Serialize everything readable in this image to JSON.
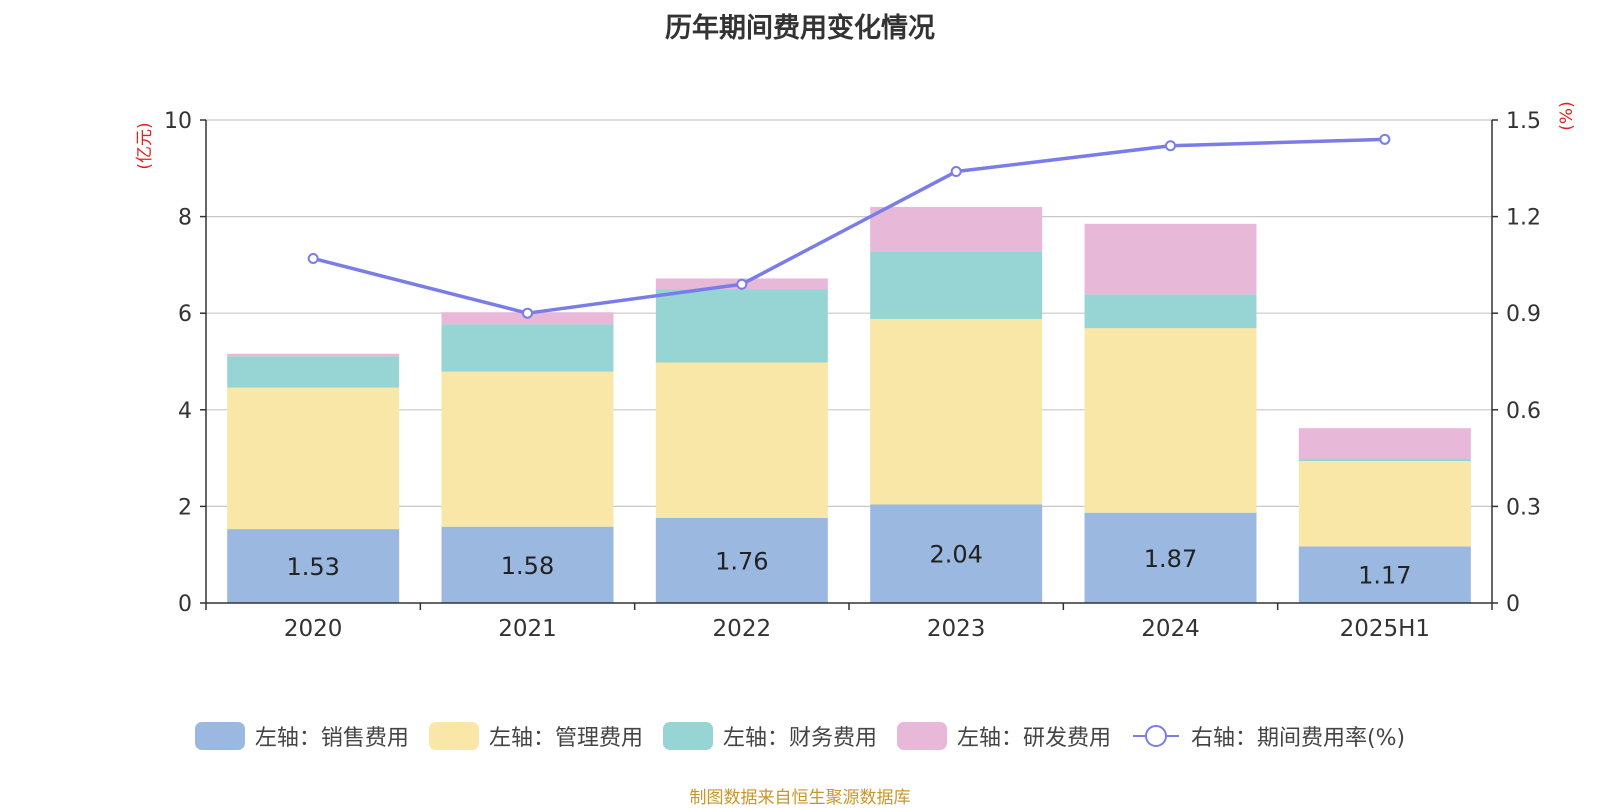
{
  "chart_data": {
    "type": "bar",
    "title": "历年期间费用变化情况",
    "categories": [
      "2020",
      "2021",
      "2022",
      "2023",
      "2024",
      "2025H1"
    ],
    "y_left": {
      "unit_label": "(亿元)",
      "ylim": [
        0,
        10
      ],
      "ticks": [
        0,
        2,
        4,
        6,
        8,
        10
      ]
    },
    "y_right": {
      "unit_label": "(%)",
      "ylim": [
        0,
        1.5
      ],
      "ticks": [
        "0",
        "0.3",
        "0.6",
        "0.9",
        "1.2",
        "1.5"
      ]
    },
    "stacked": true,
    "series": [
      {
        "name": "左轴：销售费用",
        "axis": "left",
        "color": "#9bb8e0",
        "values": [
          1.53,
          1.58,
          1.76,
          2.04,
          1.87,
          1.17
        ],
        "show_labels": true
      },
      {
        "name": "左轴：管理费用",
        "axis": "left",
        "color": "#f8e7a7",
        "values": [
          2.93,
          3.21,
          3.22,
          3.84,
          3.82,
          1.77
        ]
      },
      {
        "name": "左轴：财务费用",
        "axis": "left",
        "color": "#97d4d4",
        "values": [
          0.65,
          0.98,
          1.52,
          1.4,
          0.7,
          0.05
        ]
      },
      {
        "name": "左轴：研发费用",
        "axis": "left",
        "color": "#e8b8d9",
        "values": [
          0.05,
          0.25,
          0.22,
          0.92,
          1.46,
          0.63
        ]
      },
      {
        "name": "右轴：期间费用率(%)",
        "axis": "right",
        "type": "line",
        "color": "#7a7de8",
        "values": [
          1.07,
          0.9,
          0.99,
          1.34,
          1.42,
          1.44
        ]
      }
    ],
    "grid": true,
    "legend_position": "bottom"
  },
  "source_note": "制图数据来自恒生聚源数据库"
}
